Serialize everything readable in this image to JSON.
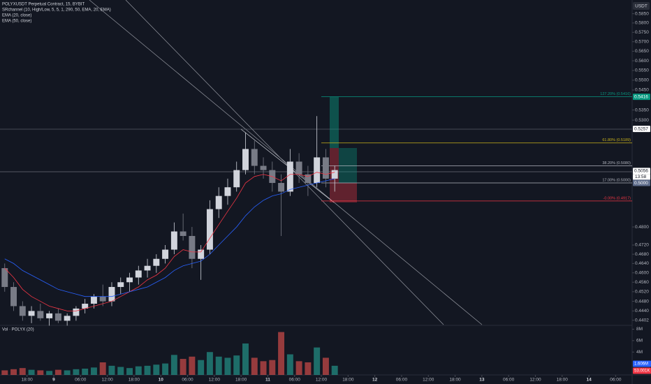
{
  "chart_data": {
    "type": "candlestick",
    "title": "POLYXUSDT Perpetual Contract, 15, BYBIT",
    "indicator": "SRchannel (10, High/Low, 5, 5, 1, 290, 50, EMA, 20, EMA)",
    "currency": "USDT",
    "log_scale": true,
    "up_color": "#d1d4dc",
    "down_color": "#787b86",
    "x": [
      -11,
      -9,
      -7,
      -5,
      -3,
      -1,
      1,
      3,
      5,
      7,
      9,
      11,
      13,
      15,
      17,
      19,
      21,
      23,
      25,
      27,
      29,
      31,
      33,
      35,
      37,
      39,
      41,
      43,
      45,
      47,
      49,
      51,
      53,
      55,
      57,
      59,
      61,
      63
    ],
    "open": [
      0.462,
      0.454,
      0.446,
      0.442,
      0.444,
      0.441,
      0.443,
      0.44,
      0.442,
      0.445,
      0.447,
      0.45,
      0.448,
      0.454,
      0.456,
      0.458,
      0.461,
      0.463,
      0.466,
      0.47,
      0.478,
      0.476,
      0.466,
      0.47,
      0.488,
      0.494,
      0.498,
      0.506,
      0.516,
      0.508,
      0.506,
      0.5,
      0.496,
      0.51,
      0.504,
      0.5,
      0.512,
      0.502
    ],
    "high": [
      0.464,
      0.456,
      0.448,
      0.446,
      0.447,
      0.444,
      0.445,
      0.443,
      0.446,
      0.449,
      0.451,
      0.455,
      0.456,
      0.458,
      0.46,
      0.463,
      0.466,
      0.468,
      0.472,
      0.482,
      0.486,
      0.48,
      0.472,
      0.492,
      0.498,
      0.502,
      0.51,
      0.524,
      0.52,
      0.512,
      0.51,
      0.504,
      0.516,
      0.514,
      0.508,
      0.532,
      0.516,
      0.508
    ],
    "low": [
      0.452,
      0.444,
      0.44,
      0.439,
      0.44,
      0.438,
      0.439,
      0.438,
      0.44,
      0.443,
      0.445,
      0.446,
      0.446,
      0.451,
      0.452,
      0.455,
      0.458,
      0.46,
      0.464,
      0.468,
      0.474,
      0.462,
      0.457,
      0.468,
      0.484,
      0.49,
      0.496,
      0.504,
      0.504,
      0.502,
      0.496,
      0.476,
      0.494,
      0.5,
      0.494,
      0.498,
      0.498,
      0.496
    ],
    "close": [
      0.454,
      0.446,
      0.442,
      0.444,
      0.441,
      0.443,
      0.44,
      0.442,
      0.445,
      0.447,
      0.45,
      0.448,
      0.454,
      0.456,
      0.458,
      0.461,
      0.463,
      0.466,
      0.47,
      0.478,
      0.476,
      0.466,
      0.47,
      0.488,
      0.494,
      0.498,
      0.506,
      0.516,
      0.508,
      0.506,
      0.5,
      0.496,
      0.51,
      0.504,
      0.5,
      0.512,
      0.502,
      0.506
    ],
    "series": [
      {
        "name": "EMA (20, close)",
        "color": "#f23645",
        "values": [
          0.462,
          0.458,
          0.453,
          0.45,
          0.448,
          0.446,
          0.445,
          0.444,
          0.444,
          0.445,
          0.446,
          0.447,
          0.448,
          0.45,
          0.452,
          0.454,
          0.457,
          0.459,
          0.462,
          0.467,
          0.47,
          0.469,
          0.469,
          0.475,
          0.481,
          0.487,
          0.493,
          0.5,
          0.503,
          0.504,
          0.503,
          0.501,
          0.504,
          0.504,
          0.503,
          0.505,
          0.504,
          0.505
        ]
      },
      {
        "name": "EMA (50, close)",
        "color": "#2962ff",
        "values": [
          0.466,
          0.464,
          0.461,
          0.459,
          0.457,
          0.455,
          0.453,
          0.452,
          0.451,
          0.45,
          0.45,
          0.45,
          0.45,
          0.451,
          0.452,
          0.453,
          0.454,
          0.456,
          0.458,
          0.461,
          0.463,
          0.464,
          0.465,
          0.468,
          0.472,
          0.476,
          0.48,
          0.485,
          0.489,
          0.492,
          0.494,
          0.495,
          0.497,
          0.498,
          0.499,
          0.5,
          0.501,
          0.502
        ]
      }
    ],
    "xlim": [
      -12.06,
      129.7
    ],
    "xticks": [
      {
        "value": -6,
        "label": "18:00"
      },
      {
        "value": 0,
        "label": "9"
      },
      {
        "value": 6,
        "label": "06:00"
      },
      {
        "value": 12,
        "label": "12:00"
      },
      {
        "value": 18,
        "label": "18:00"
      },
      {
        "value": 24,
        "label": "10"
      },
      {
        "value": 30,
        "label": "06:00"
      },
      {
        "value": 36,
        "label": "12:00"
      },
      {
        "value": 42,
        "label": "18:00"
      },
      {
        "value": 48,
        "label": "11"
      },
      {
        "value": 54,
        "label": "06:00"
      },
      {
        "value": 60,
        "label": "12:00"
      },
      {
        "value": 66,
        "label": "18:00"
      },
      {
        "value": 72,
        "label": "12"
      },
      {
        "value": 78,
        "label": "06:00"
      },
      {
        "value": 84,
        "label": "12:00"
      },
      {
        "value": 90,
        "label": "18:00"
      },
      {
        "value": 96,
        "label": "13"
      },
      {
        "value": 102,
        "label": "06:00"
      },
      {
        "value": 108,
        "label": "12:00"
      },
      {
        "value": 114,
        "label": "18:00"
      },
      {
        "value": 120,
        "label": "14"
      },
      {
        "value": 126,
        "label": "06:00"
      }
    ],
    "ylim": [
      0.4384,
      0.5925
    ],
    "yticks": [
      {
        "value": 0.585,
        "label": "0.5850"
      },
      {
        "value": 0.58,
        "label": "0.5800"
      },
      {
        "value": 0.575,
        "label": "0.5750"
      },
      {
        "value": 0.57,
        "label": "0.5700"
      },
      {
        "value": 0.565,
        "label": "0.5650"
      },
      {
        "value": 0.56,
        "label": "0.5600"
      },
      {
        "value": 0.555,
        "label": "0.5550"
      },
      {
        "value": 0.55,
        "label": "0.5500"
      },
      {
        "value": 0.545,
        "label": "0.5450"
      },
      {
        "value": 0.535,
        "label": "0.5350"
      },
      {
        "value": 0.53,
        "label": "0.5300"
      },
      {
        "value": 0.48,
        "label": "0.4800"
      },
      {
        "value": 0.472,
        "label": "0.4720"
      },
      {
        "value": 0.468,
        "label": "0.4680"
      },
      {
        "value": 0.464,
        "label": "0.4640"
      },
      {
        "value": 0.46,
        "label": "0.4600"
      },
      {
        "value": 0.456,
        "label": "0.4560"
      },
      {
        "value": 0.452,
        "label": "0.4520"
      },
      {
        "value": 0.448,
        "label": "0.4480"
      },
      {
        "value": 0.444,
        "label": "0.4440"
      },
      {
        "value": 0.4402,
        "label": "0.4402"
      }
    ],
    "levels": [
      {
        "label": "127.20% (0.5416)",
        "value": 0.5416,
        "color": "#089981"
      },
      {
        "label": "61.80% (0.5189)",
        "value": 0.5189,
        "color": "#c9b21b"
      },
      {
        "label": "38.20% (0.5080)",
        "value": 0.508,
        "color": "#b2b5be"
      },
      {
        "label": "17.00% (0.5000)",
        "value": 0.5,
        "color": "#b2b5be"
      },
      {
        "label": "-0.00% (0.4917)",
        "value": 0.4917,
        "color": "#f23645"
      }
    ],
    "price_labels": [
      {
        "value": 0.5416,
        "label": "0.5416",
        "color": "#089981"
      },
      {
        "value": 0.5257,
        "label": "0.5257",
        "color": "#ffffff"
      },
      {
        "value": 0.5056,
        "label": "0.5056",
        "color": "#ffffff"
      },
      {
        "value": 0.5,
        "label": "0.5000",
        "color": "#5d6b8a"
      }
    ],
    "countdown": "13:58",
    "volume": {
      "title": "Vol · POLYX (20)",
      "values": [
        0.8,
        1.0,
        1.2,
        0.9,
        0.8,
        0.7,
        0.9,
        0.8,
        1.0,
        1.1,
        1.3,
        2.2,
        1.6,
        1.4,
        1.2,
        1.5,
        1.6,
        1.8,
        2.0,
        3.5,
        2.8,
        3.2,
        2.6,
        4.0,
        3.2,
        3.0,
        3.4,
        5.5,
        3.0,
        2.4,
        2.6,
        7.5,
        3.6,
        2.4,
        2.2,
        4.8,
        3.0,
        1.6
      ],
      "up_color": "#26a69a",
      "down_color": "#ef5350",
      "ylim": [
        0,
        8.67
      ],
      "yticks": [
        {
          "value": 8,
          "label": "8M"
        },
        {
          "value": 6,
          "label": "6M"
        },
        {
          "value": 4,
          "label": "4M"
        }
      ],
      "last_labels": [
        {
          "label": "1.606M",
          "color": "#2962ff"
        },
        {
          "label": "53.001K",
          "color": "#f23645"
        }
      ]
    }
  }
}
